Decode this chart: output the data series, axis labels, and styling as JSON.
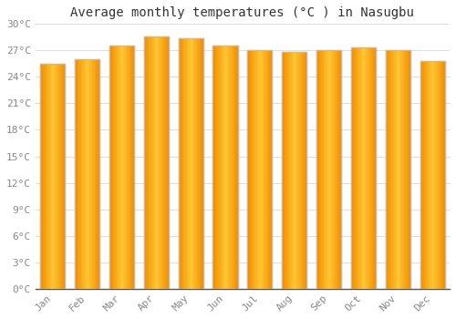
{
  "months": [
    "Jan",
    "Feb",
    "Mar",
    "Apr",
    "May",
    "Jun",
    "Jul",
    "Aug",
    "Sep",
    "Oct",
    "Nov",
    "Dec"
  ],
  "temperatures": [
    25.5,
    26.0,
    27.5,
    28.6,
    28.4,
    27.5,
    27.0,
    26.8,
    27.0,
    27.3,
    27.0,
    25.8
  ],
  "bar_color_main": "#FFA500",
  "bar_color_edge": "#E89000",
  "title": "Average monthly temperatures (°C ) in Nasugbu",
  "ylim": [
    0,
    30
  ],
  "ytick_step": 3,
  "background_color": "#ffffff",
  "plot_bg_color": "#ffffff",
  "grid_color": "#dddddd",
  "title_fontsize": 10,
  "tick_fontsize": 8,
  "tick_color": "#888888",
  "axis_color": "#555555",
  "font_family": "monospace"
}
